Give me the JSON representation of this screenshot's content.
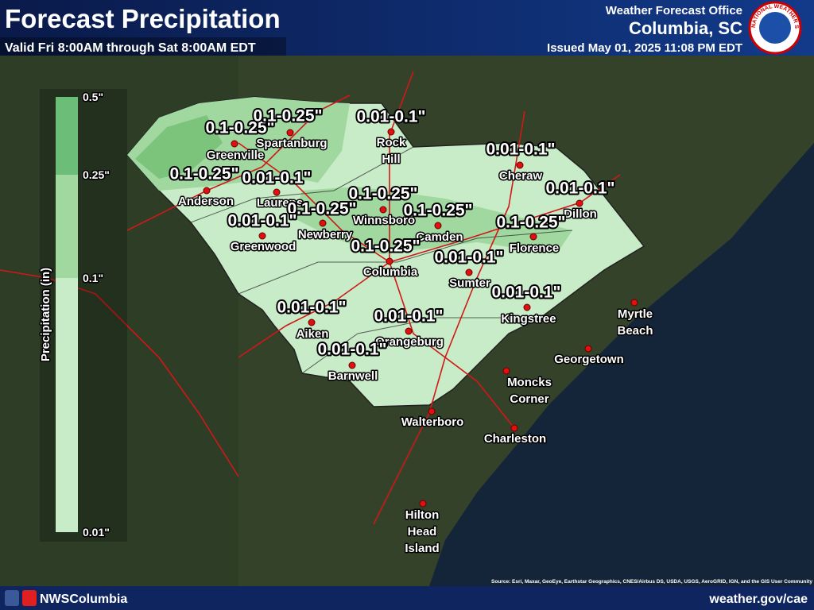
{
  "header": {
    "title": "Forecast Precipitation",
    "subtitle": "Valid Fri 8:00AM through Sat 8:00AM EDT",
    "office": "Weather Forecast Office",
    "location": "Columbia, SC",
    "issued": "Issued May 01, 2025 11:08 PM EDT",
    "logo": "NATIONAL WEATHER SERVICE"
  },
  "legend": {
    "title": "Precipitation (in)",
    "labels": [
      "0.5\"",
      "0.25\"",
      "0.1\"",
      "0.01\""
    ]
  },
  "cities": [
    {
      "lines": [
        "Greenville"
      ]
    },
    {
      "lines": [
        "Spartanburg"
      ]
    },
    {
      "lines": [
        "Rock",
        "Hill"
      ]
    },
    {
      "lines": [
        "Anderson"
      ]
    },
    {
      "lines": [
        "Laurens"
      ]
    },
    {
      "lines": [
        "Newberry"
      ]
    },
    {
      "lines": [
        "Greenwood"
      ]
    },
    {
      "lines": [
        "Winnsboro"
      ]
    },
    {
      "lines": [
        "Camden"
      ]
    },
    {
      "lines": [
        "Cheraw"
      ]
    },
    {
      "lines": [
        "Dillon"
      ]
    },
    {
      "lines": [
        "Florence"
      ]
    },
    {
      "lines": [
        "Columbia"
      ]
    },
    {
      "lines": [
        "Sumter"
      ]
    },
    {
      "lines": [
        "Kingstree"
      ]
    },
    {
      "lines": [
        "Aiken"
      ]
    },
    {
      "lines": [
        "Orangeburg"
      ]
    },
    {
      "lines": [
        "Barnwell"
      ]
    },
    {
      "lines": [
        "Moncks",
        "Corner"
      ]
    },
    {
      "lines": [
        "Walterboro"
      ]
    },
    {
      "lines": [
        "Charleston"
      ]
    },
    {
      "lines": [
        "Georgetown"
      ]
    },
    {
      "lines": [
        "Myrtle",
        "Beach"
      ]
    },
    {
      "lines": [
        "Hilton",
        "Head",
        "Island"
      ]
    }
  ],
  "amounts": [
    "0.1-0.25\"",
    "0.1-0.25\"",
    "0.01-0.1\"",
    "0.01-0.1\"",
    "0.1-0.25\"",
    "0.01-0.1\"",
    "0.01-0.1\"",
    "0.1-0.25\"",
    "0.1-0.25\"",
    "0.1-0.25\"",
    "0.01-0.1\"",
    "0.1-0.25\"",
    "0.1-0.25\"",
    "0.01-0.1\"",
    "0.01-0.1\"",
    "0.01-0.1\"",
    "0.01-0.1\"",
    "0.01-0.1\""
  ],
  "footer": {
    "social": "NWSColumbia",
    "url": "weather.gov/cae",
    "source": "Source: Esri, Maxar, GeoEye, Earthstar Geographics, CNES/Airbus DS, USDA, USGS, AeroGRID, IGN, and the GIS User Community"
  }
}
